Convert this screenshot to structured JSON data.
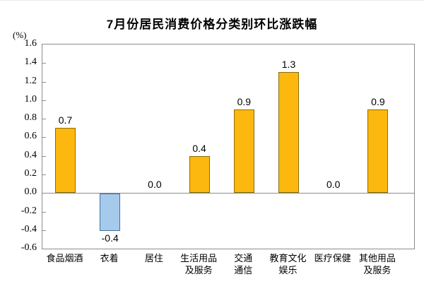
{
  "chart_data": {
    "type": "bar",
    "title": "7月份居民消费价格分类别环比涨跌幅",
    "unit": "(%)",
    "ylim": [
      -0.6,
      1.6
    ],
    "ytick_step": 0.2,
    "ytick_labels": [
      "1.6",
      "1.4",
      "1.2",
      "1.0",
      "0.8",
      "0.6",
      "0.4",
      "0.2",
      "0.0",
      "-0.2",
      "-0.4",
      "-0.6"
    ],
    "categories": [
      "食品烟酒",
      "衣着",
      "居住",
      "生活用品及服务",
      "交通通信",
      "教育文化娱乐",
      "医疗保健",
      "其他用品及服务"
    ],
    "category_label_lines": [
      [
        "食品烟酒"
      ],
      [
        "衣着"
      ],
      [
        "居住"
      ],
      [
        "生活用品",
        "及服务"
      ],
      [
        "交通",
        "通信"
      ],
      [
        "教育文化",
        "娱乐"
      ],
      [
        "医疗保健"
      ],
      [
        "其他用品",
        "及服务"
      ]
    ],
    "values": [
      0.7,
      -0.4,
      0.0,
      0.4,
      0.9,
      1.3,
      0.0,
      0.9
    ],
    "value_labels": [
      "0.7",
      "-0.4",
      "0.0",
      "0.4",
      "0.9",
      "1.3",
      "0.0",
      "0.9"
    ],
    "grid": "off",
    "legend": "none",
    "colors": {
      "positive_fill": "#FCB80E",
      "positive_border": "#8A6D0B",
      "negative_fill": "#A6CAEC",
      "negative_border": "#41719C",
      "axis": "#8c8c8c",
      "text": "#000000"
    }
  }
}
